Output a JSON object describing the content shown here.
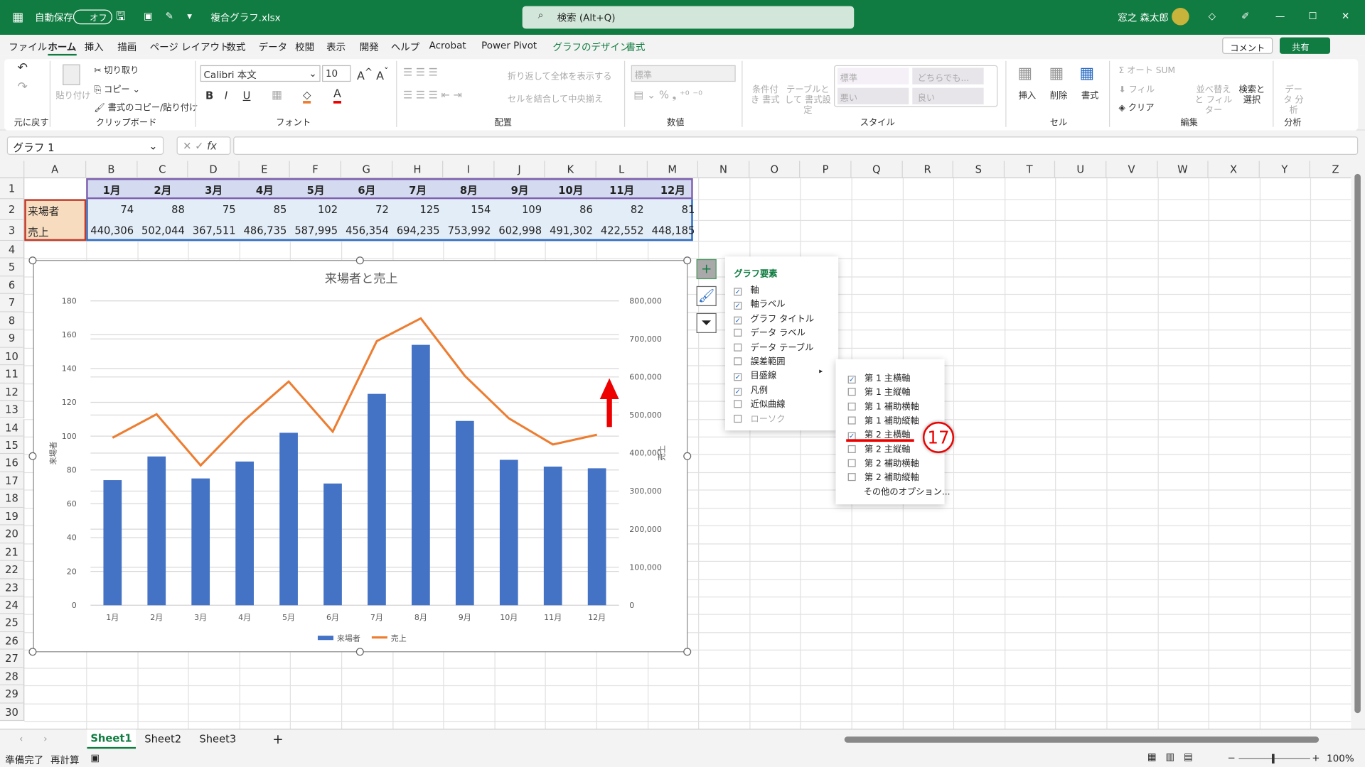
{
  "titlebar": {
    "autosave": "自動保存",
    "toggle": "オフ",
    "filename": "複合グラフ.xlsx",
    "search": "検索 (Alt+Q)",
    "user": "窓之 森太郎",
    "color": "#107c41"
  },
  "menu": [
    "ファイル",
    "ホーム",
    "挿入",
    "描画",
    "ページ レイアウト",
    "数式",
    "データ",
    "校閲",
    "表示",
    "開発",
    "ヘルプ",
    "Acrobat",
    "Power Pivot",
    "グラフのデザイン",
    "書式"
  ],
  "menu_right": {
    "comment": "コメント",
    "share": "共有"
  },
  "ribbon": {
    "undo_group": "元に戻す",
    "clipboard": {
      "paste": "貼り付け",
      "cut": "切り取り",
      "copy": "コピー",
      "format_painter": "書式のコピー/貼り付け",
      "group": "クリップボード"
    },
    "font": {
      "name": "Calibri 本文",
      "size": "10",
      "group": "フォント"
    },
    "align": {
      "wrap": "折り返して全体を表示する",
      "merge": "セルを結合して中央揃え",
      "group": "配置"
    },
    "number": {
      "format": "標準",
      "group": "数値"
    },
    "styles": {
      "conditional": "条件付き 書式",
      "table": "テーブルとして 書式設定",
      "normal": "標準",
      "neutral": "どちらでも...",
      "bad": "悪い",
      "good": "良い",
      "group": "スタイル"
    },
    "cells": {
      "insert": "挿入",
      "delete": "削除",
      "format": "書式",
      "group": "セル"
    },
    "edit": {
      "autosum": "オート SUM",
      "fill": "フィル",
      "clear": "クリア",
      "sort": "並べ替えと フィルター",
      "find": "検索と 選択",
      "group": "編集"
    },
    "analysis": {
      "data": "データ 分析",
      "group": "分析"
    }
  },
  "namebox": "グラフ 1",
  "columns": [
    "A",
    "B",
    "C",
    "D",
    "E",
    "F",
    "G",
    "H",
    "I",
    "J",
    "K",
    "L",
    "M",
    "N",
    "O",
    "P",
    "Q",
    "R",
    "S",
    "T",
    "U",
    "V",
    "W",
    "X",
    "Y",
    "Z"
  ],
  "rows": [
    "1",
    "2",
    "3",
    "4",
    "5",
    "6",
    "7",
    "8",
    "9",
    "10",
    "11",
    "12",
    "13",
    "14",
    "15",
    "16",
    "17",
    "18",
    "19",
    "20",
    "21",
    "22",
    "23",
    "24",
    "25",
    "26",
    "27",
    "28",
    "29",
    "30"
  ],
  "table": {
    "months": [
      "1月",
      "2月",
      "3月",
      "4月",
      "5月",
      "6月",
      "7月",
      "8月",
      "9月",
      "10月",
      "11月",
      "12月"
    ],
    "row2_label": "来場者",
    "row2": [
      "74",
      "88",
      "75",
      "85",
      "102",
      "72",
      "125",
      "154",
      "109",
      "86",
      "82",
      "81"
    ],
    "row3_label": "売上",
    "row3": [
      "440,306",
      "502,044",
      "367,511",
      "486,735",
      "587,995",
      "456,354",
      "694,235",
      "753,992",
      "602,998",
      "491,302",
      "422,552",
      "448,185"
    ]
  },
  "chart_data": {
    "type": "bar+line",
    "title": "来場者と売上",
    "categories": [
      "1月",
      "2月",
      "3月",
      "4月",
      "5月",
      "6月",
      "7月",
      "8月",
      "9月",
      "10月",
      "11月",
      "12月"
    ],
    "series": [
      {
        "name": "来場者",
        "type": "bar",
        "axis": "primary",
        "color": "#4472c4",
        "values": [
          74,
          88,
          75,
          85,
          102,
          72,
          125,
          154,
          109,
          86,
          82,
          81
        ]
      },
      {
        "name": "売上",
        "type": "line",
        "axis": "secondary",
        "color": "#ed7d31",
        "values": [
          440306,
          502044,
          367511,
          486735,
          587995,
          456354,
          694235,
          753992,
          602998,
          491302,
          422552,
          448185
        ]
      }
    ],
    "ylabel": "来場者",
    "y2label": "売上",
    "ylim": [
      0,
      180
    ],
    "yticks": [
      "0",
      "20",
      "40",
      "60",
      "80",
      "100",
      "120",
      "140",
      "160",
      "180"
    ],
    "y2lim": [
      0,
      800000
    ],
    "y2ticks": [
      "0",
      "100,000",
      "200,000",
      "300,000",
      "400,000",
      "500,000",
      "600,000",
      "700,000",
      "800,000"
    ],
    "grid": true,
    "legend": "bottom"
  },
  "elements_panel": {
    "title": "グラフ要素",
    "items": [
      {
        "label": "軸",
        "checked": true
      },
      {
        "label": "軸ラベル",
        "checked": true
      },
      {
        "label": "グラフ タイトル",
        "checked": true
      },
      {
        "label": "データ ラベル",
        "checked": false
      },
      {
        "label": "データ テーブル",
        "checked": false
      },
      {
        "label": "誤差範囲",
        "checked": false
      },
      {
        "label": "目盛線",
        "checked": true
      },
      {
        "label": "凡例",
        "checked": true
      },
      {
        "label": "近似曲線",
        "checked": false
      },
      {
        "label": "ローソク",
        "checked": false
      }
    ]
  },
  "gridlines_menu": {
    "items": [
      {
        "label": "第 1 主横軸",
        "checked": true
      },
      {
        "label": "第 1 主縦軸",
        "checked": false
      },
      {
        "label": "第 1 補助横軸",
        "checked": false
      },
      {
        "label": "第 1 補助縦軸",
        "checked": false
      },
      {
        "label": "第 2 主横軸",
        "checked": true
      },
      {
        "label": "第 2 主縦軸",
        "checked": false
      },
      {
        "label": "第 2 補助横軸",
        "checked": false
      },
      {
        "label": "第 2 補助縦軸",
        "checked": false
      }
    ],
    "more": "その他のオプション..."
  },
  "annotation": {
    "step": "17"
  },
  "sheets": [
    "Sheet1",
    "Sheet2",
    "Sheet3"
  ],
  "status": {
    "ready": "準備完了",
    "recalc": "再計算",
    "zoom": "100%"
  }
}
